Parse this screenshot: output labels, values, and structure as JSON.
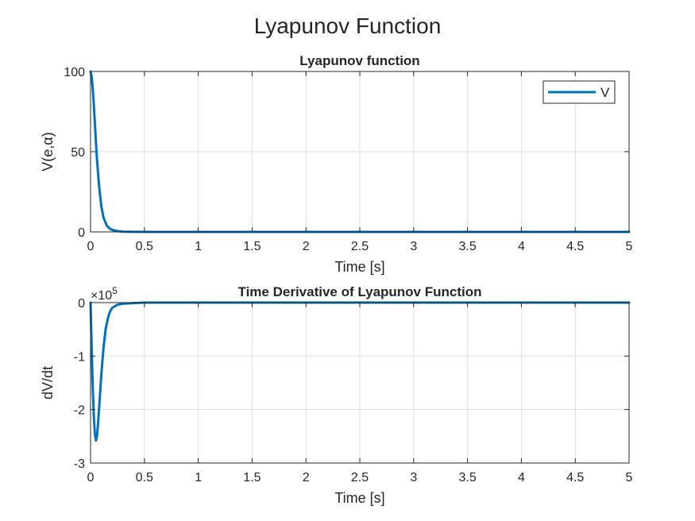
{
  "figure_title": "Lyapunov Function",
  "chart_data": [
    {
      "type": "line",
      "title": "Lyapunov function",
      "xlabel": "Time [s]",
      "ylabel": "V(e,α)",
      "xlim": [
        0,
        5
      ],
      "ylim": [
        0,
        100
      ],
      "xticks": [
        0,
        0.5,
        1,
        1.5,
        2,
        2.5,
        3,
        3.5,
        4,
        4.5,
        5
      ],
      "xtick_labels": [
        "0",
        "0.5",
        "1",
        "1.5",
        "2",
        "2.5",
        "3",
        "3.5",
        "4",
        "4.5",
        "5"
      ],
      "yticks": [
        0,
        50,
        100
      ],
      "ytick_labels": [
        "0",
        "50",
        "100"
      ],
      "grid": true,
      "legend": {
        "position": "top-right",
        "entries": [
          "V"
        ]
      },
      "series": [
        {
          "name": "V",
          "color": "#0072BD",
          "x": [
            0,
            0.01,
            0.02,
            0.03,
            0.04,
            0.05,
            0.06,
            0.08,
            0.1,
            0.12,
            0.15,
            0.18,
            0.2,
            0.25,
            0.3,
            0.35,
            0.4,
            0.5,
            0.6,
            0.8,
            1,
            2,
            3,
            4,
            5
          ],
          "y": [
            100,
            97,
            90,
            80,
            68,
            56,
            45,
            28,
            16,
            9,
            4,
            2,
            1.3,
            0.5,
            0.2,
            0.1,
            0.05,
            0,
            0,
            0,
            0,
            0,
            0,
            0,
            0
          ]
        }
      ]
    },
    {
      "type": "line",
      "title": "Time Derivative of Lyapunov Function",
      "xlabel": "Time [s]",
      "ylabel": "dV/dt",
      "y_exponent_label": "×10",
      "y_exponent": "5",
      "xlim": [
        0,
        5
      ],
      "ylim": [
        -3,
        0
      ],
      "xticks": [
        0,
        0.5,
        1,
        1.5,
        2,
        2.5,
        3,
        3.5,
        4,
        4.5,
        5
      ],
      "xtick_labels": [
        "0",
        "0.5",
        "1",
        "1.5",
        "2",
        "2.5",
        "3",
        "3.5",
        "4",
        "4.5",
        "5"
      ],
      "yticks": [
        -3,
        -2,
        -1,
        0
      ],
      "ytick_labels": [
        "-3",
        "-2",
        "-1",
        "0"
      ],
      "grid": true,
      "series": [
        {
          "color": "#0072BD",
          "x": [
            0,
            0.01,
            0.02,
            0.03,
            0.04,
            0.05,
            0.06,
            0.07,
            0.08,
            0.1,
            0.12,
            0.14,
            0.16,
            0.18,
            0.2,
            0.25,
            0.3,
            0.4,
            0.5,
            1,
            2,
            3,
            4,
            5
          ],
          "y": [
            0,
            -0.8,
            -1.55,
            -2.1,
            -2.45,
            -2.58,
            -2.5,
            -2.25,
            -1.95,
            -1.35,
            -0.85,
            -0.5,
            -0.3,
            -0.17,
            -0.1,
            -0.04,
            -0.02,
            -0.01,
            0,
            0,
            0,
            0,
            0,
            0
          ]
        }
      ]
    }
  ]
}
